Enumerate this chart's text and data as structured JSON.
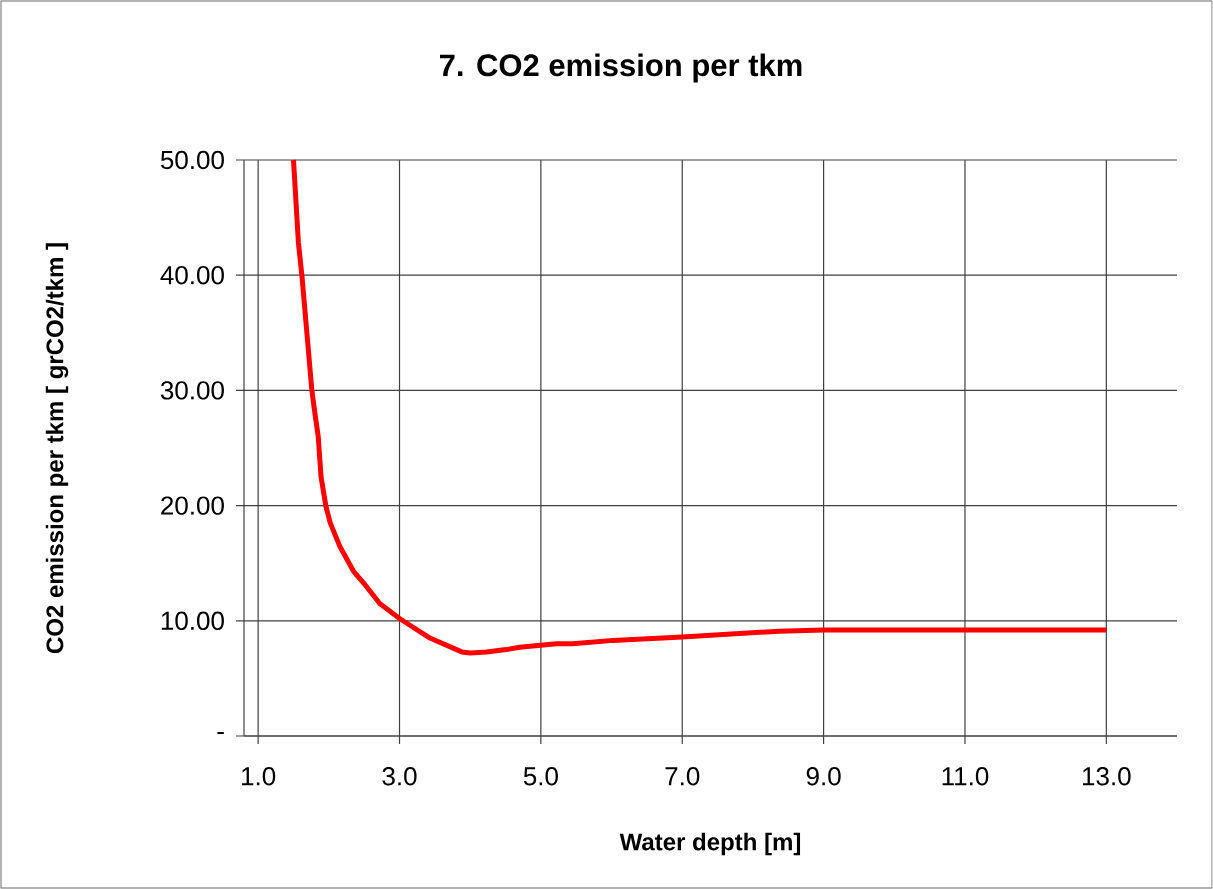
{
  "chart_data": {
    "type": "line",
    "title": "7. CO2 emission per tkm",
    "xlabel": "Water depth [m]",
    "ylabel": "CO2 emission per tkm [ grCO2/tkm ]",
    "x": [
      1.5,
      1.57,
      1.62,
      1.76,
      1.81,
      1.85,
      1.89,
      1.96,
      2.02,
      2.16,
      2.35,
      2.49,
      2.72,
      3.0,
      3.43,
      3.88,
      4.0,
      4.23,
      4.51,
      4.7,
      5.22,
      5.45,
      6.02,
      7.0,
      8.37,
      9.0,
      11.0,
      13.0
    ],
    "series": [
      {
        "color": "#ff0000",
        "values": [
          50,
          42.8,
          39.9,
          30.0,
          27.7,
          26.0,
          22.5,
          19.9,
          18.5,
          16.4,
          14.3,
          13.3,
          11.5,
          10.2,
          8.5,
          7.3,
          7.2,
          7.3,
          7.5,
          7.7,
          8.0,
          8.0,
          8.3,
          8.6,
          9.1,
          9.2,
          9.2,
          9.2
        ]
      }
    ],
    "xlim": [
      0.8,
      14.0
    ],
    "ylim": [
      0,
      50
    ],
    "xticks": [
      {
        "value": 1,
        "label": "1.0"
      },
      {
        "value": 3,
        "label": "3.0"
      },
      {
        "value": 5,
        "label": "5.0"
      },
      {
        "value": 7,
        "label": "7.0"
      },
      {
        "value": 9,
        "label": "9.0"
      },
      {
        "value": 11,
        "label": "11.0"
      },
      {
        "value": 13,
        "label": "13.0"
      }
    ],
    "yticks": [
      {
        "value": 0,
        "label": "-"
      },
      {
        "value": 10,
        "label": "10.00"
      },
      {
        "value": 20,
        "label": "20.00"
      },
      {
        "value": 30,
        "label": "30.00"
      },
      {
        "value": 40,
        "label": "40.00"
      },
      {
        "value": 50,
        "label": "50.00"
      }
    ],
    "grid": true,
    "marker": "none",
    "line_style": "solid"
  }
}
